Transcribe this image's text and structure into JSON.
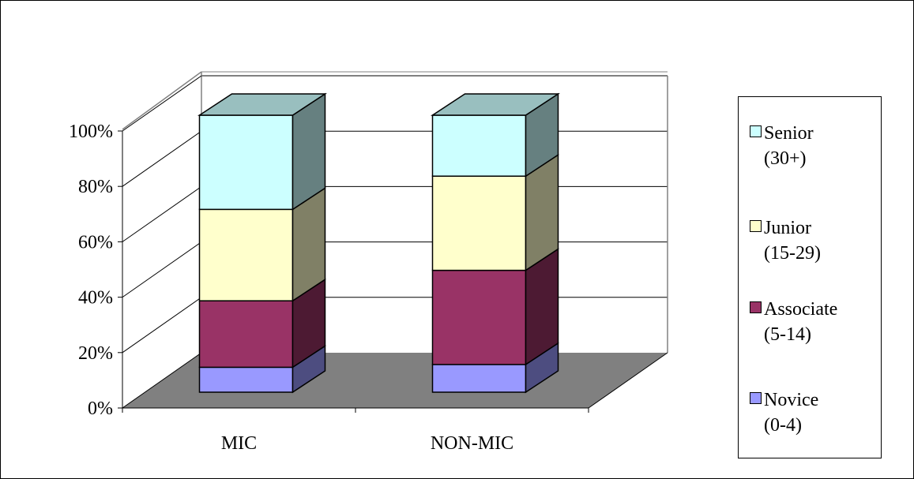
{
  "chart_data": {
    "type": "bar",
    "stacked": true,
    "percent_stacked": true,
    "three_d": true,
    "categories": [
      "MIC",
      "NON-MIC"
    ],
    "series": [
      {
        "name": "Novice (0-4)",
        "values": [
          9,
          10
        ],
        "color": "#9999ff"
      },
      {
        "name": "Associate (5-14)",
        "values": [
          24,
          34
        ],
        "color": "#993366"
      },
      {
        "name": "Junior (15-29)",
        "values": [
          33,
          34
        ],
        "color": "#ffffcc"
      },
      {
        "name": "Senior (30+)",
        "values": [
          34,
          22
        ],
        "color": "#ccffff"
      }
    ],
    "y_ticks": [
      "0%",
      "20%",
      "40%",
      "60%",
      "80%",
      "100%"
    ],
    "ylim": [
      0,
      100
    ],
    "grid": true,
    "legend_position": "right",
    "floor_color": "#808080"
  },
  "legend": [
    {
      "line1": "Senior",
      "line2": "(30+)",
      "color": "#ccffff"
    },
    {
      "line1": "Junior",
      "line2": "(15-29)",
      "color": "#ffffcc"
    },
    {
      "line1": "Associate",
      "line2": "(5-14)",
      "color": "#993366"
    },
    {
      "line1": "Novice",
      "line2": "(0-4)",
      "color": "#9999ff"
    }
  ]
}
